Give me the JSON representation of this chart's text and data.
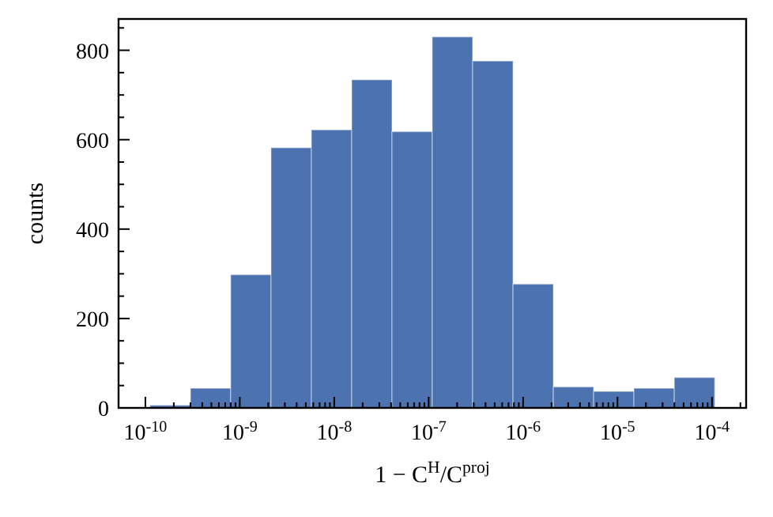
{
  "chart_data": {
    "type": "histogram",
    "xlabel": "1 − C$^{H}$/C$^{proj}$",
    "ylabel": "counts",
    "bins": [
      1.12e-10,
      3e-10,
      8e-10,
      2.14e-09,
      5.73e-09,
      1.53e-08,
      4.09e-08,
      1.09e-07,
      2.92e-07,
      7.82e-07,
      2.09e-06,
      5.58e-06,
      1.49e-05,
      3.99e-05,
      0.000107
    ],
    "values": [
      6,
      44,
      298,
      582,
      622,
      734,
      618,
      830,
      776,
      277,
      47,
      37,
      44,
      68
    ],
    "color": "#4c72b0",
    "log": "x",
    "grid": false,
    "xlim": [
      5.2e-11,
      0.00023
    ],
    "ylim": [
      0,
      870
    ],
    "xticks": [
      {
        "value": 1e-10,
        "label": "10$^{-10}$"
      },
      {
        "value": 2e-10,
        "label": null
      },
      {
        "value": 3e-10,
        "label": null
      },
      {
        "value": 4e-10,
        "label": null
      },
      {
        "value": 5e-10,
        "label": null
      },
      {
        "value": 6e-10,
        "label": null
      },
      {
        "value": 7e-10,
        "label": null
      },
      {
        "value": 8e-10,
        "label": null
      },
      {
        "value": 9e-10,
        "label": null
      },
      {
        "value": 1e-09,
        "label": "10$^{-9}$"
      },
      {
        "value": 2e-09,
        "label": null
      },
      {
        "value": 3e-09,
        "label": null
      },
      {
        "value": 4e-09,
        "label": null
      },
      {
        "value": 5e-09,
        "label": null
      },
      {
        "value": 6e-09,
        "label": null
      },
      {
        "value": 7e-09,
        "label": null
      },
      {
        "value": 8e-09,
        "label": null
      },
      {
        "value": 9e-09,
        "label": null
      },
      {
        "value": 1e-08,
        "label": "10$^{-8}$"
      },
      {
        "value": 2e-08,
        "label": null
      },
      {
        "value": 3e-08,
        "label": null
      },
      {
        "value": 4e-08,
        "label": null
      },
      {
        "value": 5e-08,
        "label": null
      },
      {
        "value": 6e-08,
        "label": null
      },
      {
        "value": 7e-08,
        "label": null
      },
      {
        "value": 8e-08,
        "label": null
      },
      {
        "value": 9e-08,
        "label": null
      },
      {
        "value": 1e-07,
        "label": "10$^{-7}$"
      },
      {
        "value": 2e-07,
        "label": null
      },
      {
        "value": 3e-07,
        "label": null
      },
      {
        "value": 4e-07,
        "label": null
      },
      {
        "value": 5e-07,
        "label": null
      },
      {
        "value": 6e-07,
        "label": null
      },
      {
        "value": 7e-07,
        "label": null
      },
      {
        "value": 8e-07,
        "label": null
      },
      {
        "value": 9e-07,
        "label": null
      },
      {
        "value": 1e-06,
        "label": "10$^{-6}$"
      },
      {
        "value": 2e-06,
        "label": null
      },
      {
        "value": 3e-06,
        "label": null
      },
      {
        "value": 4e-06,
        "label": null
      },
      {
        "value": 5e-06,
        "label": null
      },
      {
        "value": 6e-06,
        "label": null
      },
      {
        "value": 7e-06,
        "label": null
      },
      {
        "value": 8e-06,
        "label": null
      },
      {
        "value": 9e-06,
        "label": null
      },
      {
        "value": 1e-05,
        "label": "10$^{-5}$"
      },
      {
        "value": 2e-05,
        "label": null
      },
      {
        "value": 3e-05,
        "label": null
      },
      {
        "value": 4e-05,
        "label": null
      },
      {
        "value": 5e-05,
        "label": null
      },
      {
        "value": 6e-05,
        "label": null
      },
      {
        "value": 7e-05,
        "label": null
      },
      {
        "value": 8e-05,
        "label": null
      },
      {
        "value": 9e-05,
        "label": null
      },
      {
        "value": 0.0001,
        "label": "10$^{-4}$"
      },
      {
        "value": 0.0002,
        "label": null
      }
    ],
    "yticks": [
      0,
      {
        "value": 50,
        "label": null
      },
      {
        "value": 100,
        "label": null
      },
      {
        "value": 150,
        "label": null
      },
      200,
      {
        "value": 250,
        "label": null
      },
      {
        "value": 300,
        "label": null
      },
      {
        "value": 350,
        "label": null
      },
      400,
      {
        "value": 450,
        "label": null
      },
      {
        "value": 500,
        "label": null
      },
      {
        "value": 550,
        "label": null
      },
      600,
      {
        "value": 650,
        "label": null
      },
      {
        "value": 700,
        "label": null
      },
      {
        "value": 750,
        "label": null
      },
      800,
      {
        "value": 850,
        "label": null
      }
    ]
  }
}
